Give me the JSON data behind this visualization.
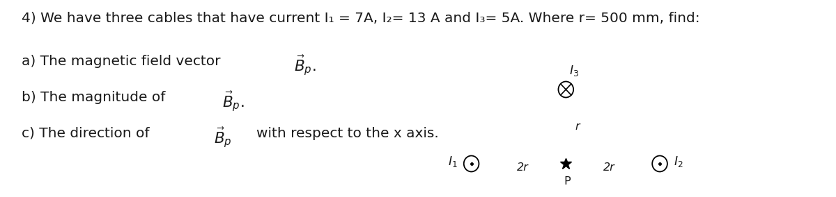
{
  "title_line": "4) We have three cables that have current I₁ = 7A, I₂= 13 A and I₃= 5A. Where r= 500 mm, find:",
  "line_a": "a) The magnetic field vector",
  "line_b": "b) The magnitude of",
  "line_c": "c) The direction of",
  "line_c2": "with respect to the x axis.",
  "bg_color": "#ffffff",
  "text_color": "#1a1a1a",
  "font_size": 14.5,
  "diagram": {
    "label_I1": "$I_1$",
    "label_I2": "$I_2$",
    "label_I3": "$I_3$",
    "label_P": "P",
    "label_r": "r",
    "label_2r_left": "2r",
    "label_2r_right": "2r"
  }
}
